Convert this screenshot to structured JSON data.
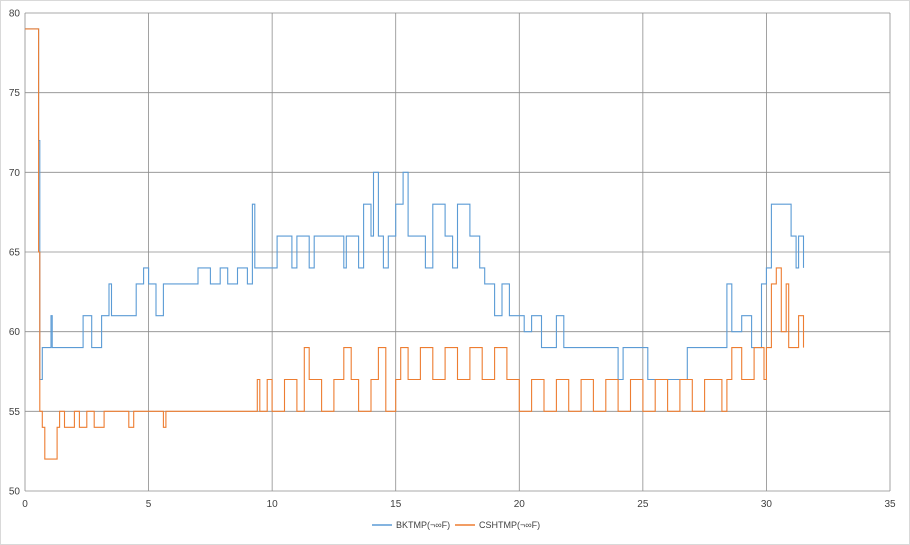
{
  "chart_data": {
    "type": "line",
    "title": "",
    "xlabel": "",
    "ylabel": "",
    "xlim": [
      0,
      35
    ],
    "ylim": [
      50,
      80
    ],
    "x_ticks": [
      0,
      5,
      10,
      15,
      20,
      25,
      30,
      35
    ],
    "y_ticks": [
      50,
      55,
      60,
      65,
      70,
      75,
      80
    ],
    "x_tick_labels": [
      "0",
      "5",
      "10",
      "15",
      "20",
      "25",
      "30",
      "35"
    ],
    "y_tick_labels": [
      "50",
      "55",
      "60",
      "65",
      "70",
      "75",
      "80"
    ],
    "grid": true,
    "legend_position": "bottom",
    "series": [
      {
        "name": "BKTMP(¬∞F)",
        "color": "#5b9bd5",
        "points": [
          [
            0,
            79
          ],
          [
            0.5,
            79
          ],
          [
            0.55,
            72
          ],
          [
            0.6,
            57
          ],
          [
            0.7,
            59
          ],
          [
            1.0,
            59
          ],
          [
            1.05,
            61
          ],
          [
            1.1,
            59
          ],
          [
            2.3,
            59
          ],
          [
            2.35,
            61
          ],
          [
            2.6,
            61
          ],
          [
            2.7,
            59
          ],
          [
            3.0,
            59
          ],
          [
            3.1,
            61
          ],
          [
            3.4,
            63
          ],
          [
            3.5,
            61
          ],
          [
            4.4,
            61
          ],
          [
            4.5,
            63
          ],
          [
            4.8,
            64
          ],
          [
            5.0,
            63
          ],
          [
            5.3,
            61
          ],
          [
            5.6,
            63
          ],
          [
            6.9,
            63
          ],
          [
            7.0,
            64
          ],
          [
            7.5,
            63
          ],
          [
            7.9,
            64
          ],
          [
            8.2,
            63
          ],
          [
            8.6,
            64
          ],
          [
            9.0,
            63
          ],
          [
            9.2,
            68
          ],
          [
            9.3,
            64
          ],
          [
            10.0,
            64
          ],
          [
            10.2,
            66
          ],
          [
            10.8,
            64
          ],
          [
            11.0,
            66
          ],
          [
            11.5,
            64
          ],
          [
            11.7,
            66
          ],
          [
            12.8,
            66
          ],
          [
            12.9,
            64
          ],
          [
            13.0,
            66
          ],
          [
            13.5,
            64
          ],
          [
            13.7,
            68
          ],
          [
            14.0,
            66
          ],
          [
            14.1,
            70
          ],
          [
            14.3,
            66
          ],
          [
            14.5,
            64
          ],
          [
            14.7,
            66
          ],
          [
            15.0,
            68
          ],
          [
            15.3,
            70
          ],
          [
            15.5,
            66
          ],
          [
            16.0,
            66
          ],
          [
            16.2,
            64
          ],
          [
            16.5,
            68
          ],
          [
            17.0,
            66
          ],
          [
            17.3,
            64
          ],
          [
            17.5,
            68
          ],
          [
            18.0,
            66
          ],
          [
            18.4,
            64
          ],
          [
            18.6,
            63
          ],
          [
            19.0,
            61
          ],
          [
            19.3,
            63
          ],
          [
            19.6,
            61
          ],
          [
            20.2,
            60
          ],
          [
            20.5,
            61
          ],
          [
            20.9,
            59
          ],
          [
            21.5,
            61
          ],
          [
            21.8,
            59
          ],
          [
            23.8,
            59
          ],
          [
            24.0,
            57
          ],
          [
            24.2,
            59
          ],
          [
            25.0,
            59
          ],
          [
            25.2,
            57
          ],
          [
            26.5,
            57
          ],
          [
            26.8,
            59
          ],
          [
            27.5,
            59
          ],
          [
            28.0,
            59
          ],
          [
            28.4,
            63
          ],
          [
            28.6,
            60
          ],
          [
            29.0,
            61
          ],
          [
            29.4,
            59
          ],
          [
            29.8,
            63
          ],
          [
            30.0,
            64
          ],
          [
            30.2,
            68
          ],
          [
            30.8,
            68
          ],
          [
            31.0,
            66
          ],
          [
            31.2,
            64
          ],
          [
            31.3,
            66
          ],
          [
            31.5,
            64
          ]
        ]
      },
      {
        "name": "CSHTMP(¬∞F)",
        "color": "#ed7d31",
        "points": [
          [
            0,
            79
          ],
          [
            0.5,
            79
          ],
          [
            0.55,
            65
          ],
          [
            0.6,
            55
          ],
          [
            0.7,
            54
          ],
          [
            0.8,
            52
          ],
          [
            1.2,
            52
          ],
          [
            1.3,
            54
          ],
          [
            1.4,
            55
          ],
          [
            1.6,
            54
          ],
          [
            2.0,
            55
          ],
          [
            2.2,
            54
          ],
          [
            2.5,
            55
          ],
          [
            2.8,
            54
          ],
          [
            3.2,
            55
          ],
          [
            4.0,
            55
          ],
          [
            4.2,
            54
          ],
          [
            4.4,
            55
          ],
          [
            5.5,
            55
          ],
          [
            5.6,
            54
          ],
          [
            5.7,
            55
          ],
          [
            9.3,
            55
          ],
          [
            9.4,
            57
          ],
          [
            9.5,
            55
          ],
          [
            9.8,
            57
          ],
          [
            10.0,
            55
          ],
          [
            10.5,
            57
          ],
          [
            11.0,
            55
          ],
          [
            11.3,
            59
          ],
          [
            11.5,
            57
          ],
          [
            12.0,
            55
          ],
          [
            12.5,
            57
          ],
          [
            12.9,
            59
          ],
          [
            13.2,
            57
          ],
          [
            13.5,
            55
          ],
          [
            14.0,
            57
          ],
          [
            14.3,
            59
          ],
          [
            14.6,
            55
          ],
          [
            15.0,
            57
          ],
          [
            15.2,
            59
          ],
          [
            15.5,
            57
          ],
          [
            16.0,
            59
          ],
          [
            16.5,
            57
          ],
          [
            17.0,
            59
          ],
          [
            17.5,
            57
          ],
          [
            18.0,
            59
          ],
          [
            18.5,
            57
          ],
          [
            19.0,
            59
          ],
          [
            19.5,
            57
          ],
          [
            20.0,
            55
          ],
          [
            20.5,
            57
          ],
          [
            21.0,
            55
          ],
          [
            21.5,
            57
          ],
          [
            22.0,
            55
          ],
          [
            22.5,
            57
          ],
          [
            23.0,
            55
          ],
          [
            23.5,
            57
          ],
          [
            24.0,
            55
          ],
          [
            24.5,
            57
          ],
          [
            25.0,
            55
          ],
          [
            25.5,
            57
          ],
          [
            26.0,
            55
          ],
          [
            26.5,
            57
          ],
          [
            27.0,
            55
          ],
          [
            27.5,
            57
          ],
          [
            28.2,
            55
          ],
          [
            28.4,
            57
          ],
          [
            28.6,
            59
          ],
          [
            29.0,
            57
          ],
          [
            29.5,
            59
          ],
          [
            29.9,
            57
          ],
          [
            30.0,
            59
          ],
          [
            30.2,
            63
          ],
          [
            30.4,
            64
          ],
          [
            30.6,
            60
          ],
          [
            30.8,
            63
          ],
          [
            30.9,
            59
          ],
          [
            31.3,
            61
          ],
          [
            31.5,
            59
          ]
        ]
      }
    ]
  }
}
